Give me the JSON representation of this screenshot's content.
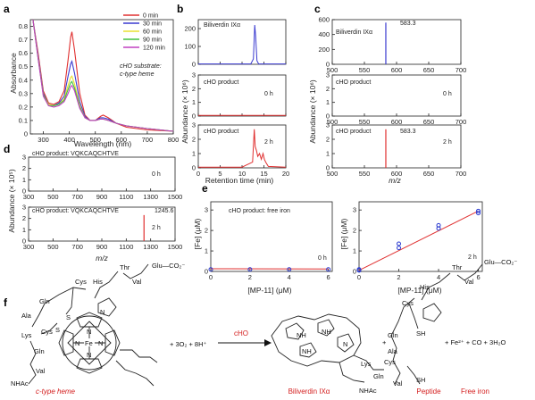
{
  "panels": {
    "a": {
      "letter": "a",
      "xlabel": "Wavelength (nm)",
      "ylabel": "Absorbance",
      "substrate_line1": "cHO substrate:",
      "substrate_line2": "c-type heme",
      "legend": [
        "0 min",
        "30 min",
        "60 min",
        "90 min",
        "120 min"
      ],
      "colors": [
        "#e03030",
        "#3a3ad0",
        "#e8e030",
        "#40c040",
        "#c040c0"
      ],
      "xticks": [
        "300",
        "400",
        "500",
        "600",
        "700",
        "800"
      ],
      "yticks": [
        "0",
        "0.1",
        "0.2",
        "0.3",
        "0.4",
        "0.5",
        "0.6",
        "0.7",
        "0.8"
      ]
    },
    "b": {
      "letter": "b",
      "ylabel": "Abundance (× 10⁶)",
      "xlabel": "Retention time (min)",
      "sub1": "Biliverdin IXα",
      "sub2": "cHO product",
      "sub2_time": "0 h",
      "sub3": "cHO product",
      "sub3_time": "2 h",
      "xticks": [
        "0",
        "5",
        "10",
        "15",
        "20"
      ],
      "yticks1": [
        "0",
        "100",
        "200"
      ],
      "yticks2": [
        "0",
        "1",
        "2",
        "3"
      ],
      "yticks3": [
        "0",
        "1",
        "2",
        "3"
      ]
    },
    "c": {
      "letter": "c",
      "ylabel": "Abundance (× 10⁶)",
      "xlabel": "m/z",
      "sub1": "Biliverdin IXα",
      "peak1": "583.3",
      "sub2": "cHO product",
      "sub2_time": "0 h",
      "sub3": "cHO product",
      "sub3_time": "2 h",
      "peak3": "583.3",
      "xticks": [
        "500",
        "550",
        "600",
        "650",
        "700"
      ],
      "yticks1": [
        "0",
        "200",
        "400",
        "600"
      ],
      "yticks2": [
        "0",
        "1",
        "2",
        "3"
      ],
      "yticks3": [
        "0",
        "1",
        "2",
        "3"
      ]
    },
    "d": {
      "letter": "d",
      "ylabel": "Abundance (× 10⁵)",
      "xlabel": "m/z",
      "sub1": "cHO product: VQKCAQCHTVE",
      "sub1_time": "0 h",
      "sub2": "cHO product: VQKCAQCHTVE",
      "sub2_time": "2 h",
      "peak2": "1245.6",
      "xticks": [
        "300",
        "500",
        "700",
        "900",
        "1100",
        "1300",
        "1500"
      ],
      "yticks1": [
        "0",
        "1",
        "2",
        "3"
      ],
      "yticks2": [
        "0",
        "1",
        "2",
        "3"
      ]
    },
    "e": {
      "letter": "e",
      "ylabel": "[Fe] (μM)",
      "xlabel": "[MP-11] (μM)",
      "sub1": "cHO product: free iron",
      "sub1_time": "0 h",
      "sub2_time": "2 h",
      "xticks": [
        "0",
        "2",
        "4",
        "6"
      ],
      "yticks": [
        "0",
        "1",
        "2",
        "3"
      ]
    },
    "f": {
      "letter": "f",
      "equation_plus": "+ 3O₂ + 8H⁺",
      "enzyme": "cHO",
      "plus2": "+",
      "products_tail": "+ Fe²⁺ + CO + 3H₂O",
      "labels": [
        "c-type heme",
        "Biliverdin IXα",
        "Peptide",
        "Free iron"
      ],
      "label_color": "#d42020",
      "residues": [
        "Thr",
        "Val",
        "Glu—CO₂⁻",
        "His",
        "Cys",
        "Gln",
        "Ala",
        "Lys",
        "Cys",
        "Gln",
        "Val",
        "NHAc",
        "S",
        "S",
        "Fe",
        "N",
        "N",
        "N",
        "N",
        "N",
        "NH",
        "NH",
        "N",
        "NH",
        "SH",
        "SH"
      ]
    }
  },
  "chart_data": [
    {
      "type": "line",
      "panel": "a",
      "xlabel": "Wavelength (nm)",
      "ylabel": "Absorbance",
      "xlim": [
        250,
        800
      ],
      "ylim": [
        0,
        0.85
      ],
      "x": [
        260,
        280,
        300,
        320,
        340,
        360,
        380,
        395,
        405,
        410,
        420,
        440,
        460,
        480,
        500,
        520,
        530,
        550,
        580,
        620,
        660,
        700,
        800
      ],
      "series": [
        {
          "name": "0 min",
          "values": [
            0.85,
            0.6,
            0.32,
            0.23,
            0.22,
            0.24,
            0.32,
            0.55,
            0.72,
            0.76,
            0.62,
            0.3,
            0.14,
            0.1,
            0.1,
            0.13,
            0.14,
            0.12,
            0.08,
            0.05,
            0.04,
            0.03,
            0.02
          ]
        },
        {
          "name": "30 min",
          "values": [
            0.85,
            0.58,
            0.3,
            0.22,
            0.21,
            0.23,
            0.28,
            0.43,
            0.52,
            0.54,
            0.45,
            0.24,
            0.13,
            0.1,
            0.1,
            0.12,
            0.12,
            0.11,
            0.08,
            0.06,
            0.05,
            0.04,
            0.02
          ]
        },
        {
          "name": "60 min",
          "values": [
            0.85,
            0.57,
            0.29,
            0.22,
            0.21,
            0.22,
            0.26,
            0.36,
            0.42,
            0.43,
            0.37,
            0.21,
            0.12,
            0.1,
            0.1,
            0.11,
            0.11,
            0.1,
            0.08,
            0.06,
            0.05,
            0.04,
            0.02
          ]
        },
        {
          "name": "90 min",
          "values": [
            0.85,
            0.56,
            0.29,
            0.21,
            0.21,
            0.22,
            0.25,
            0.33,
            0.38,
            0.39,
            0.34,
            0.2,
            0.12,
            0.1,
            0.1,
            0.11,
            0.11,
            0.1,
            0.08,
            0.06,
            0.05,
            0.04,
            0.02
          ]
        },
        {
          "name": "120 min",
          "values": [
            0.85,
            0.56,
            0.28,
            0.21,
            0.2,
            0.21,
            0.24,
            0.3,
            0.35,
            0.36,
            0.32,
            0.19,
            0.12,
            0.1,
            0.1,
            0.11,
            0.11,
            0.1,
            0.08,
            0.06,
            0.05,
            0.04,
            0.02
          ]
        }
      ]
    },
    {
      "type": "line",
      "panel": "b-1",
      "xlim": [
        0,
        20
      ],
      "ylim": [
        0,
        250
      ],
      "x": [
        0,
        12.0,
        12.6,
        12.9,
        13.1,
        13.4,
        13.8,
        20
      ],
      "values": [
        2,
        2,
        30,
        220,
        160,
        20,
        2,
        2
      ]
    },
    {
      "type": "line",
      "panel": "b-2",
      "xlim": [
        0,
        20
      ],
      "ylim": [
        0,
        3
      ],
      "x": [
        0,
        20
      ],
      "values": [
        0.05,
        0.05
      ]
    },
    {
      "type": "line",
      "panel": "b-3",
      "xlim": [
        0,
        20
      ],
      "ylim": [
        0,
        3
      ],
      "x": [
        0,
        10,
        11,
        12.4,
        12.8,
        13.0,
        13.3,
        13.6,
        14.0,
        14.4,
        14.8,
        15.1,
        15.4,
        16,
        20
      ],
      "values": [
        0.05,
        0.05,
        0.2,
        0.4,
        2.7,
        1.5,
        1.2,
        0.8,
        1.0,
        0.6,
        1.0,
        0.6,
        0.4,
        0.1,
        0.05
      ]
    },
    {
      "type": "bar",
      "panel": "c-1",
      "xlim": [
        500,
        700
      ],
      "ylim": [
        0,
        600
      ],
      "x": [
        583.3
      ],
      "values": [
        560
      ]
    },
    {
      "type": "bar",
      "panel": "c-2",
      "xlim": [
        500,
        700
      ],
      "ylim": [
        0,
        3
      ],
      "x": [],
      "values": []
    },
    {
      "type": "bar",
      "panel": "c-3",
      "xlim": [
        500,
        700
      ],
      "ylim": [
        0,
        3
      ],
      "x": [
        583.3
      ],
      "values": [
        2.7
      ]
    },
    {
      "type": "bar",
      "panel": "d-1",
      "xlim": [
        300,
        1500
      ],
      "ylim": [
        0,
        3
      ],
      "x": [],
      "values": []
    },
    {
      "type": "bar",
      "panel": "d-2",
      "xlim": [
        300,
        1500
      ],
      "ylim": [
        0,
        3
      ],
      "x": [
        1245.6
      ],
      "values": [
        2.3
      ]
    },
    {
      "type": "scatter",
      "panel": "e-1",
      "xlabel": "[MP-11] (μM)",
      "ylabel": "[Fe] (μM)",
      "xlim": [
        0,
        6.2
      ],
      "ylim": [
        0,
        3.4
      ],
      "x": [
        0,
        2,
        4,
        6
      ],
      "values": [
        0.1,
        0.1,
        0.1,
        0.1
      ],
      "fit": [
        [
          0,
          0.13
        ],
        [
          6,
          0.12
        ]
      ]
    },
    {
      "type": "scatter",
      "panel": "e-2",
      "xlabel": "[MP-11] (μM)",
      "ylabel": "[Fe] (μM)",
      "xlim": [
        0,
        6.2
      ],
      "ylim": [
        0,
        3.4
      ],
      "x": [
        0,
        0,
        2,
        2,
        4,
        4,
        6,
        6
      ],
      "values": [
        0.05,
        0.1,
        1.15,
        1.35,
        2.1,
        2.25,
        2.85,
        2.95
      ],
      "fit": [
        [
          0,
          0.05
        ],
        [
          6,
          2.95
        ]
      ]
    }
  ]
}
